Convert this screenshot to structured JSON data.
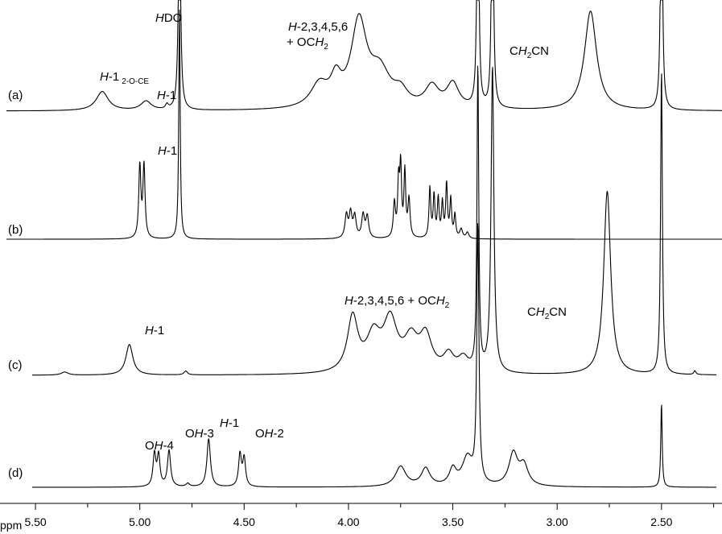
{
  "chart_data": {
    "type": "line",
    "title": "",
    "xlabel": "ppm",
    "ylabel": "",
    "xlim": [
      5.67,
      2.21
    ],
    "x_reversed": true,
    "grid": false,
    "legend": "none",
    "x_ticks": [
      5.5,
      5.25,
      5.0,
      4.75,
      4.5,
      4.25,
      4.0,
      3.75,
      3.5,
      3.25,
      3.0,
      2.75,
      2.5,
      2.25
    ],
    "x_tick_labels": [
      "5.50",
      "",
      "5.00",
      "",
      "4.50",
      "",
      "4.00",
      "",
      "3.50",
      "",
      "3.00",
      "",
      "2.50",
      ""
    ],
    "series": [
      {
        "name": "(a)",
        "peaks": [
          {
            "x": 5.18,
            "h": 0.25,
            "w": 0.035
          },
          {
            "x": 4.97,
            "h": 0.12,
            "w": 0.03
          },
          {
            "x": 4.87,
            "h": 0.06,
            "w": 0.008
          },
          {
            "x": 4.81,
            "h": 3.0,
            "w": 0.006
          },
          {
            "x": 4.14,
            "h": 0.3,
            "w": 0.05
          },
          {
            "x": 4.06,
            "h": 0.32,
            "w": 0.03
          },
          {
            "x": 3.95,
            "h": 1.1,
            "w": 0.045
          },
          {
            "x": 3.85,
            "h": 0.45,
            "w": 0.06
          },
          {
            "x": 3.75,
            "h": 0.18,
            "w": 0.04
          },
          {
            "x": 3.6,
            "h": 0.28,
            "w": 0.04
          },
          {
            "x": 3.5,
            "h": 0.32,
            "w": 0.035
          },
          {
            "x": 3.38,
            "h": 4.0,
            "w": 0.005
          },
          {
            "x": 3.31,
            "h": 4.0,
            "w": 0.005
          },
          {
            "x": 2.84,
            "h": 1.3,
            "w": 0.035
          },
          {
            "x": 2.5,
            "h": 4.0,
            "w": 0.005
          }
        ]
      },
      {
        "name": "(b)",
        "peaks": [
          {
            "x": 5.0,
            "h": 0.95,
            "w": 0.006
          },
          {
            "x": 4.98,
            "h": 0.95,
            "w": 0.006
          },
          {
            "x": 4.81,
            "h": 3.0,
            "w": 0.004
          },
          {
            "x": 4.01,
            "h": 0.3,
            "w": 0.008
          },
          {
            "x": 3.99,
            "h": 0.32,
            "w": 0.008
          },
          {
            "x": 3.97,
            "h": 0.28,
            "w": 0.008
          },
          {
            "x": 3.93,
            "h": 0.3,
            "w": 0.008
          },
          {
            "x": 3.91,
            "h": 0.28,
            "w": 0.008
          },
          {
            "x": 3.78,
            "h": 0.45,
            "w": 0.006
          },
          {
            "x": 3.76,
            "h": 0.7,
            "w": 0.005
          },
          {
            "x": 3.75,
            "h": 0.9,
            "w": 0.005
          },
          {
            "x": 3.73,
            "h": 0.85,
            "w": 0.005
          },
          {
            "x": 3.71,
            "h": 0.5,
            "w": 0.006
          },
          {
            "x": 3.61,
            "h": 0.65,
            "w": 0.005
          },
          {
            "x": 3.59,
            "h": 0.55,
            "w": 0.005
          },
          {
            "x": 3.57,
            "h": 0.5,
            "w": 0.005
          },
          {
            "x": 3.55,
            "h": 0.45,
            "w": 0.005
          },
          {
            "x": 3.53,
            "h": 0.7,
            "w": 0.005
          },
          {
            "x": 3.51,
            "h": 0.5,
            "w": 0.005
          },
          {
            "x": 3.49,
            "h": 0.3,
            "w": 0.005
          },
          {
            "x": 3.46,
            "h": 0.12,
            "w": 0.008
          },
          {
            "x": 3.43,
            "h": 0.08,
            "w": 0.008
          }
        ]
      },
      {
        "name": "(c)",
        "peaks": [
          {
            "x": 5.36,
            "h": 0.04,
            "w": 0.02
          },
          {
            "x": 5.05,
            "h": 0.4,
            "w": 0.02
          },
          {
            "x": 4.78,
            "h": 0.05,
            "w": 0.01
          },
          {
            "x": 3.98,
            "h": 0.72,
            "w": 0.03
          },
          {
            "x": 3.88,
            "h": 0.45,
            "w": 0.04
          },
          {
            "x": 3.8,
            "h": 0.65,
            "w": 0.04
          },
          {
            "x": 3.7,
            "h": 0.4,
            "w": 0.04
          },
          {
            "x": 3.63,
            "h": 0.45,
            "w": 0.035
          },
          {
            "x": 3.52,
            "h": 0.22,
            "w": 0.03
          },
          {
            "x": 3.45,
            "h": 0.18,
            "w": 0.03
          },
          {
            "x": 3.38,
            "h": 4.0,
            "w": 0.005
          },
          {
            "x": 3.31,
            "h": 4.0,
            "w": 0.008
          },
          {
            "x": 2.76,
            "h": 2.4,
            "w": 0.02
          },
          {
            "x": 2.5,
            "h": 4.0,
            "w": 0.005
          },
          {
            "x": 2.34,
            "h": 0.05,
            "w": 0.006
          }
        ]
      },
      {
        "name": "(d)",
        "peaks": [
          {
            "x": 4.93,
            "h": 0.4,
            "w": 0.008
          },
          {
            "x": 4.91,
            "h": 0.38,
            "w": 0.008
          },
          {
            "x": 4.86,
            "h": 0.45,
            "w": 0.009
          },
          {
            "x": 4.77,
            "h": 0.04,
            "w": 0.01
          },
          {
            "x": 4.67,
            "h": 0.6,
            "w": 0.01
          },
          {
            "x": 4.52,
            "h": 0.4,
            "w": 0.008
          },
          {
            "x": 4.5,
            "h": 0.35,
            "w": 0.008
          },
          {
            "x": 3.75,
            "h": 0.25,
            "w": 0.03
          },
          {
            "x": 3.63,
            "h": 0.22,
            "w": 0.025
          },
          {
            "x": 3.5,
            "h": 0.2,
            "w": 0.02
          },
          {
            "x": 3.43,
            "h": 0.35,
            "w": 0.03
          },
          {
            "x": 3.38,
            "h": 3.2,
            "w": 0.006
          },
          {
            "x": 3.21,
            "h": 0.4,
            "w": 0.025
          },
          {
            "x": 3.16,
            "h": 0.25,
            "w": 0.025
          },
          {
            "x": 2.5,
            "h": 1.05,
            "w": 0.004
          }
        ]
      }
    ],
    "annotations": {
      "a_h1_2oce": {
        "main": "H",
        "mid": "-1",
        "sub": "2-O-CE"
      },
      "a_h1": {
        "main": "H",
        "mid": "-1"
      },
      "a_hdo": {
        "main": "H",
        "mid": "DO"
      },
      "a_h2to6_line1": {
        "main": "H",
        "mid": "-2,3,4,5,6"
      },
      "a_h2to6_line2": {
        "pre": "+ OC",
        "main": "H",
        "sub": "2"
      },
      "a_ch2cn": {
        "pre": "C",
        "main": "H",
        "sub": "2",
        "post": "CN"
      },
      "b_h1": {
        "main": "H",
        "mid": "-1"
      },
      "c_h1": {
        "main": "H",
        "mid": "-1"
      },
      "c_h2to6": {
        "main": "H",
        "mid": "-2,3,4,5,6 + OC",
        "main2": "H",
        "sub": "2"
      },
      "c_ch2cn": {
        "pre": "C",
        "main": "H",
        "sub": "2",
        "post": "CN"
      },
      "d_oh4": {
        "pre": "O",
        "main": "H",
        "mid": "-4"
      },
      "d_oh3": {
        "pre": "O",
        "main": "H",
        "mid": "-3"
      },
      "d_h1": {
        "main": "H",
        "mid": "-1"
      },
      "d_oh2": {
        "pre": "O",
        "main": "H",
        "mid": "-2"
      }
    }
  }
}
